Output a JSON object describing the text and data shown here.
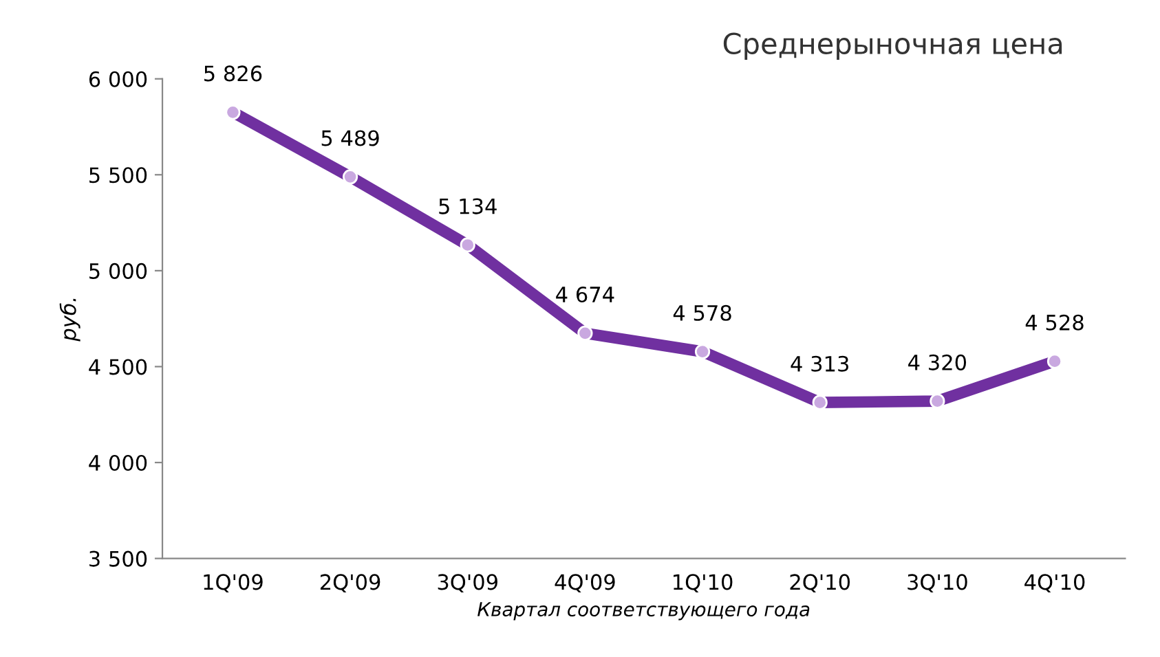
{
  "chart_data": {
    "type": "line",
    "title": "Среднерыночная цена",
    "xlabel": "Квартал соответствующего года",
    "ylabel": "руб.",
    "categories": [
      "1Q'09",
      "2Q'09",
      "3Q'09",
      "4Q'09",
      "1Q'10",
      "2Q'10",
      "3Q'10",
      "4Q'10"
    ],
    "series": [
      {
        "color": "#7030a0",
        "values": [
          5826,
          5489,
          5134,
          4674,
          4578,
          4313,
          4320,
          4528
        ],
        "value_labels": [
          "5 826",
          "5 489",
          "5 134",
          "4 674",
          "4 578",
          "4 313",
          "4 320",
          "4 528"
        ]
      }
    ],
    "ylim": [
      3500,
      6000
    ],
    "yticks": [
      {
        "value": 3500,
        "label": "3 500"
      },
      {
        "value": 4000,
        "label": "4 000"
      },
      {
        "value": 4500,
        "label": "4 500"
      },
      {
        "value": 5000,
        "label": "5 000"
      },
      {
        "value": 5500,
        "label": "5 500"
      },
      {
        "value": 6000,
        "label": "6 000"
      }
    ],
    "grid": false,
    "marker": "circle",
    "line_style": "solid"
  }
}
